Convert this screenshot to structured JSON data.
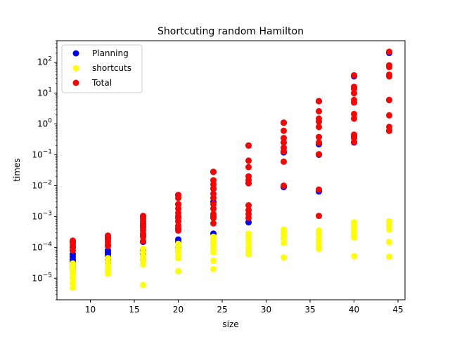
{
  "chart_data": {
    "type": "scatter",
    "title": "Shortcuting random Hamilton",
    "xlabel": "size",
    "ylabel": "times",
    "xlim": [
      6.2,
      45.8
    ],
    "ylim": [
      2e-06,
      500
    ],
    "yscale": "log",
    "xticks": [
      10,
      15,
      20,
      25,
      30,
      35,
      40,
      45
    ],
    "yticks": [
      1e-05,
      0.0001,
      0.001,
      0.01,
      0.1,
      1,
      10,
      100
    ],
    "yticklabels": [
      {
        "base": "10",
        "exp": "−5"
      },
      {
        "base": "10",
        "exp": "−4"
      },
      {
        "base": "10",
        "exp": "−3"
      },
      {
        "base": "10",
        "exp": "−2"
      },
      {
        "base": "10",
        "exp": "−1"
      },
      {
        "base": "10",
        "exp": "0"
      },
      {
        "base": "10",
        "exp": "1"
      },
      {
        "base": "10",
        "exp": "2"
      }
    ],
    "grid": false,
    "legend": "top-left",
    "series": [
      {
        "name": "Planning",
        "color": "#0000ff",
        "points": [
          [
            8,
            2e-05
          ],
          [
            8,
            2.5e-05
          ],
          [
            8,
            3e-05
          ],
          [
            8,
            3.5e-05
          ],
          [
            8,
            4e-05
          ],
          [
            8,
            5e-05
          ],
          [
            8,
            6e-05
          ],
          [
            8,
            0.0001
          ],
          [
            8,
            0.00015
          ],
          [
            12,
            3e-05
          ],
          [
            12,
            4e-05
          ],
          [
            12,
            5e-05
          ],
          [
            12,
            6e-05
          ],
          [
            12,
            7e-05
          ],
          [
            12,
            8e-05
          ],
          [
            12,
            0.00012
          ],
          [
            12,
            0.0002
          ],
          [
            16,
            4e-05
          ],
          [
            16,
            6e-05
          ],
          [
            16,
            8e-05
          ],
          [
            16,
            0.00015
          ],
          [
            16,
            0.00025
          ],
          [
            16,
            0.0005
          ],
          [
            16,
            0.001
          ],
          [
            20,
            0.0001
          ],
          [
            20,
            0.00015
          ],
          [
            20,
            0.00018
          ],
          [
            20,
            0.0004
          ],
          [
            20,
            0.001
          ],
          [
            20,
            0.0025
          ],
          [
            20,
            0.005
          ],
          [
            24,
            0.00028
          ],
          [
            24,
            0.001
          ],
          [
            24,
            0.003
          ],
          [
            24,
            0.008
          ],
          [
            24,
            0.028
          ],
          [
            28,
            0.00065
          ],
          [
            28,
            0.012
          ],
          [
            28,
            0.2
          ],
          [
            32,
            0.009
          ],
          [
            32,
            0.12
          ],
          [
            32,
            1.1
          ],
          [
            36,
            0.0065
          ],
          [
            36,
            0.1
          ],
          [
            36,
            0.22
          ],
          [
            36,
            5.5
          ],
          [
            40,
            0.25
          ],
          [
            40,
            0.4
          ],
          [
            40,
            5
          ],
          [
            40,
            35
          ],
          [
            44,
            0.6
          ],
          [
            44,
            6
          ],
          [
            44,
            200
          ]
        ]
      },
      {
        "name": "shortcuts",
        "color": "#ffff00",
        "points": [
          [
            8,
            5e-06
          ],
          [
            8,
            7e-06
          ],
          [
            8,
            1e-05
          ],
          [
            8,
            1.3e-05
          ],
          [
            8,
            1.6e-05
          ],
          [
            8,
            2e-05
          ],
          [
            8,
            2.5e-05
          ],
          [
            8,
            3e-05
          ],
          [
            12,
            1.4e-05
          ],
          [
            12,
            1.8e-05
          ],
          [
            12,
            2.2e-05
          ],
          [
            12,
            2.8e-05
          ],
          [
            12,
            3.5e-05
          ],
          [
            12,
            4.5e-05
          ],
          [
            16,
            6e-06
          ],
          [
            16,
            2.8e-05
          ],
          [
            16,
            4e-05
          ],
          [
            16,
            5.5e-05
          ],
          [
            16,
            7e-05
          ],
          [
            16,
            9e-05
          ],
          [
            20,
            1.7e-05
          ],
          [
            20,
            4.5e-05
          ],
          [
            20,
            6e-05
          ],
          [
            20,
            7.5e-05
          ],
          [
            20,
            9e-05
          ],
          [
            20,
            0.00011
          ],
          [
            20,
            0.00013
          ],
          [
            24,
            2e-05
          ],
          [
            24,
            3.7e-05
          ],
          [
            24,
            7e-05
          ],
          [
            24,
            9e-05
          ],
          [
            24,
            0.00012
          ],
          [
            24,
            0.00015
          ],
          [
            24,
            0.00018
          ],
          [
            24,
            0.00022
          ],
          [
            28,
            6e-05
          ],
          [
            28,
            8e-05
          ],
          [
            28,
            0.0001
          ],
          [
            28,
            0.00014
          ],
          [
            28,
            0.00018
          ],
          [
            28,
            0.00022
          ],
          [
            28,
            0.00028
          ],
          [
            32,
            4.7e-05
          ],
          [
            32,
            0.00014
          ],
          [
            32,
            0.0002
          ],
          [
            32,
            0.00026
          ],
          [
            32,
            0.00032
          ],
          [
            32,
            0.00038
          ],
          [
            36,
            9e-05
          ],
          [
            36,
            0.00011
          ],
          [
            36,
            0.00014
          ],
          [
            36,
            0.00018
          ],
          [
            36,
            0.00026
          ],
          [
            36,
            0.00035
          ],
          [
            40,
            5.2e-05
          ],
          [
            40,
            0.00021
          ],
          [
            40,
            0.00027
          ],
          [
            40,
            0.00033
          ],
          [
            40,
            0.0004
          ],
          [
            40,
            0.0005
          ],
          [
            40,
            0.00065
          ],
          [
            44,
            5e-05
          ],
          [
            44,
            0.00015
          ],
          [
            44,
            0.00038
          ],
          [
            44,
            0.0005
          ],
          [
            44,
            0.0006
          ],
          [
            44,
            0.0007
          ]
        ]
      },
      {
        "name": "Total",
        "color": "#ff0000",
        "points": [
          [
            8,
            0.0001
          ],
          [
            8,
            0.00012
          ],
          [
            8,
            0.00014
          ],
          [
            8,
            0.000165
          ],
          [
            8,
            8e-05
          ],
          [
            12,
            0.00015
          ],
          [
            12,
            0.00018
          ],
          [
            12,
            0.00021
          ],
          [
            12,
            0.00024
          ],
          [
            12,
            0.00011
          ],
          [
            16,
            0.00022
          ],
          [
            16,
            0.00028
          ],
          [
            16,
            0.00035
          ],
          [
            16,
            0.00042
          ],
          [
            16,
            0.0005
          ],
          [
            16,
            0.0006
          ],
          [
            16,
            0.0007
          ],
          [
            16,
            0.00085
          ],
          [
            16,
            0.00105
          ],
          [
            16,
            0.00016
          ],
          [
            20,
            0.00035
          ],
          [
            20,
            0.0005
          ],
          [
            20,
            0.0007
          ],
          [
            20,
            0.0009
          ],
          [
            20,
            0.0013
          ],
          [
            20,
            0.0018
          ],
          [
            20,
            0.0025
          ],
          [
            20,
            0.004
          ],
          [
            20,
            0.005
          ],
          [
            24,
            0.0006
          ],
          [
            24,
            0.0009
          ],
          [
            24,
            0.0012
          ],
          [
            24,
            0.0018
          ],
          [
            24,
            0.0025
          ],
          [
            24,
            0.004
          ],
          [
            24,
            0.0055
          ],
          [
            24,
            0.008
          ],
          [
            24,
            0.011
          ],
          [
            24,
            0.015
          ],
          [
            24,
            0.028
          ],
          [
            28,
            0.0009
          ],
          [
            28,
            0.0012
          ],
          [
            28,
            0.0016
          ],
          [
            28,
            0.0023
          ],
          [
            28,
            0.012
          ],
          [
            28,
            0.015
          ],
          [
            28,
            0.02
          ],
          [
            28,
            0.04
          ],
          [
            28,
            0.065
          ],
          [
            28,
            0.2
          ],
          [
            32,
            0.01
          ],
          [
            32,
            0.06
          ],
          [
            32,
            0.13
          ],
          [
            32,
            0.17
          ],
          [
            32,
            0.25
          ],
          [
            32,
            0.35
          ],
          [
            32,
            0.6
          ],
          [
            32,
            1.1
          ],
          [
            36,
            0.00105
          ],
          [
            36,
            0.0075
          ],
          [
            36,
            0.105
          ],
          [
            36,
            0.25
          ],
          [
            36,
            0.38
          ],
          [
            36,
            0.8
          ],
          [
            36,
            1.2
          ],
          [
            36,
            1.5
          ],
          [
            36,
            2.6
          ],
          [
            36,
            5.5
          ],
          [
            40,
            0.26
          ],
          [
            40,
            0.35
          ],
          [
            40,
            0.45
          ],
          [
            40,
            1.5
          ],
          [
            40,
            2.1
          ],
          [
            40,
            5
          ],
          [
            40,
            6
          ],
          [
            40,
            10
          ],
          [
            40,
            14
          ],
          [
            40,
            16
          ],
          [
            40,
            38
          ],
          [
            44,
            0.6
          ],
          [
            44,
            0.8
          ],
          [
            44,
            1.9
          ],
          [
            44,
            6
          ],
          [
            44,
            35
          ],
          [
            44,
            40
          ],
          [
            44,
            70
          ],
          [
            44,
            80
          ],
          [
            44,
            220
          ]
        ]
      }
    ]
  }
}
